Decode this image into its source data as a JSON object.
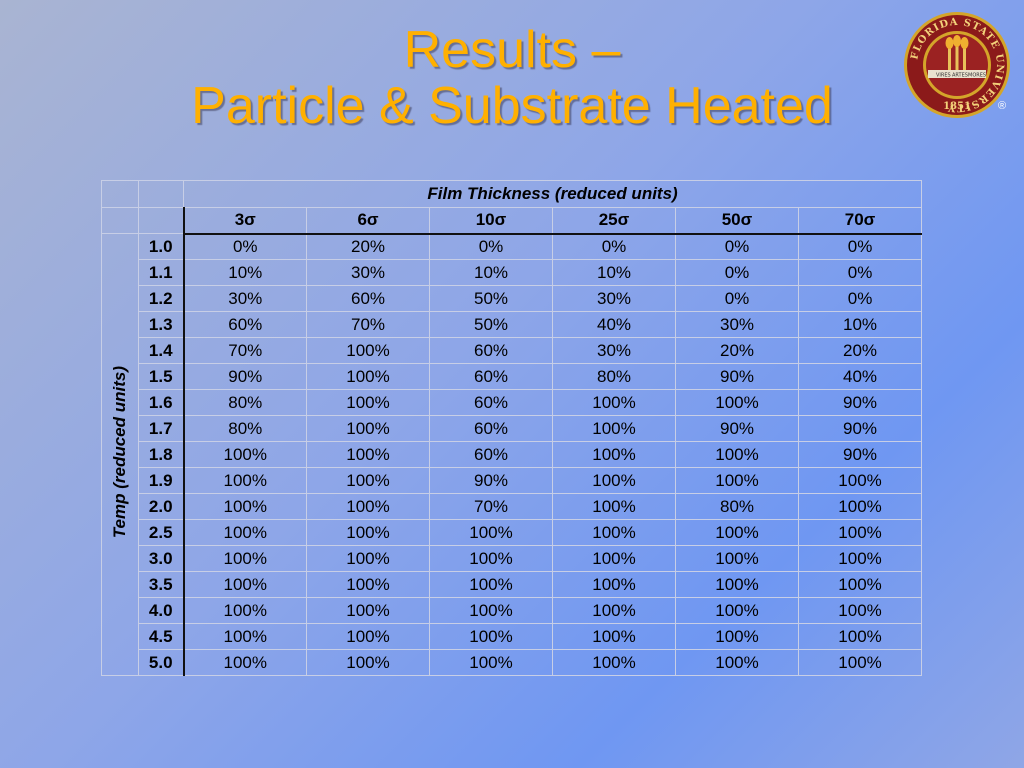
{
  "slide": {
    "title_line1": "Results –",
    "title_line2": "Particle & Substrate Heated"
  },
  "logo": {
    "ring_text": "FLORIDA STATE UNIVERSITY",
    "year": "1851",
    "motto_left": "VIRES",
    "motto_center": "ARTES",
    "motto_right": "MORES",
    "registered_mark": "®",
    "colors": {
      "garnet": "#8b1a1a",
      "gold": "#d4a52a"
    }
  },
  "table": {
    "column_group_label": "Film Thickness (reduced units)",
    "row_group_label": "Temp (reduced units)",
    "columns": [
      "3σ",
      "6σ",
      "10σ",
      "25σ",
      "50σ",
      "70σ"
    ],
    "rows": [
      {
        "temp": "1.0",
        "values": [
          "0%",
          "20%",
          "0%",
          "0%",
          "0%",
          "0%"
        ]
      },
      {
        "temp": "1.1",
        "values": [
          "10%",
          "30%",
          "10%",
          "10%",
          "0%",
          "0%"
        ]
      },
      {
        "temp": "1.2",
        "values": [
          "30%",
          "60%",
          "50%",
          "30%",
          "0%",
          "0%"
        ]
      },
      {
        "temp": "1.3",
        "values": [
          "60%",
          "70%",
          "50%",
          "40%",
          "30%",
          "10%"
        ]
      },
      {
        "temp": "1.4",
        "values": [
          "70%",
          "100%",
          "60%",
          "30%",
          "20%",
          "20%"
        ]
      },
      {
        "temp": "1.5",
        "values": [
          "90%",
          "100%",
          "60%",
          "80%",
          "90%",
          "40%"
        ]
      },
      {
        "temp": "1.6",
        "values": [
          "80%",
          "100%",
          "60%",
          "100%",
          "100%",
          "90%"
        ]
      },
      {
        "temp": "1.7",
        "values": [
          "80%",
          "100%",
          "60%",
          "100%",
          "90%",
          "90%"
        ]
      },
      {
        "temp": "1.8",
        "values": [
          "100%",
          "100%",
          "60%",
          "100%",
          "100%",
          "90%"
        ]
      },
      {
        "temp": "1.9",
        "values": [
          "100%",
          "100%",
          "90%",
          "100%",
          "100%",
          "100%"
        ]
      },
      {
        "temp": "2.0",
        "values": [
          "100%",
          "100%",
          "70%",
          "100%",
          "80%",
          "100%"
        ]
      },
      {
        "temp": "2.5",
        "values": [
          "100%",
          "100%",
          "100%",
          "100%",
          "100%",
          "100%"
        ]
      },
      {
        "temp": "3.0",
        "values": [
          "100%",
          "100%",
          "100%",
          "100%",
          "100%",
          "100%"
        ]
      },
      {
        "temp": "3.5",
        "values": [
          "100%",
          "100%",
          "100%",
          "100%",
          "100%",
          "100%"
        ]
      },
      {
        "temp": "4.0",
        "values": [
          "100%",
          "100%",
          "100%",
          "100%",
          "100%",
          "100%"
        ]
      },
      {
        "temp": "4.5",
        "values": [
          "100%",
          "100%",
          "100%",
          "100%",
          "100%",
          "100%"
        ]
      },
      {
        "temp": "5.0",
        "values": [
          "100%",
          "100%",
          "100%",
          "100%",
          "100%",
          "100%"
        ]
      }
    ]
  }
}
